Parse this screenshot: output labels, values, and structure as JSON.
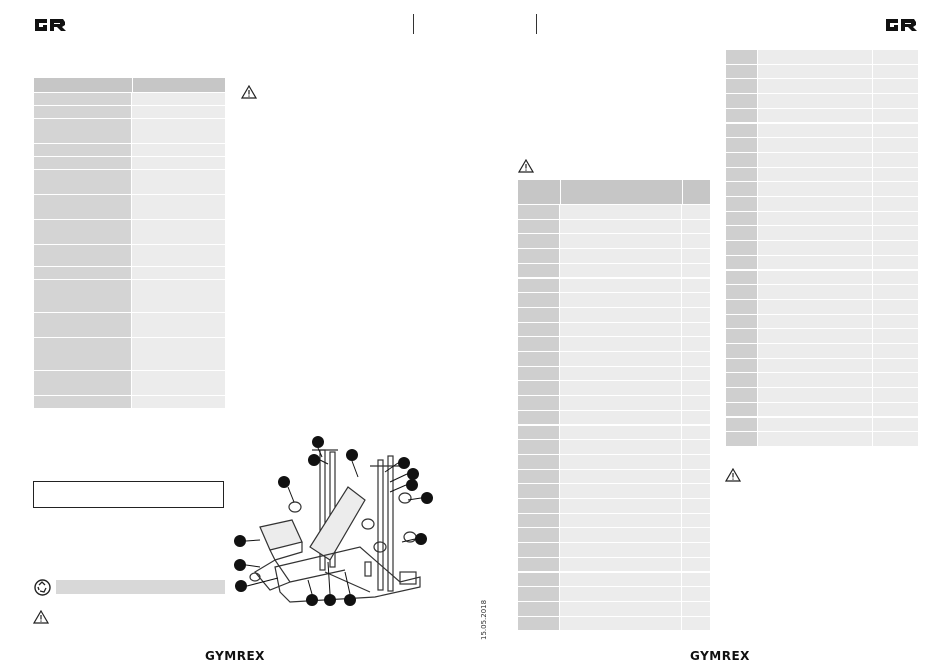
{
  "brand": {
    "logo_text": "GR",
    "footer": "GYMREX"
  },
  "date_stamp": "15.05.2018",
  "left_table_rows": 15,
  "parts_table_rows": 29,
  "right_table_rows": 27,
  "diagram_callouts": 16,
  "colors": {
    "header_gray": "#c8c8c8",
    "light_gray": "#e8e8e8",
    "mid_gray": "#d5d5d5",
    "dark": "#222222"
  },
  "icons": [
    "gr-logo",
    "warning-icon",
    "recycle-icon",
    "bench-diagram"
  ]
}
